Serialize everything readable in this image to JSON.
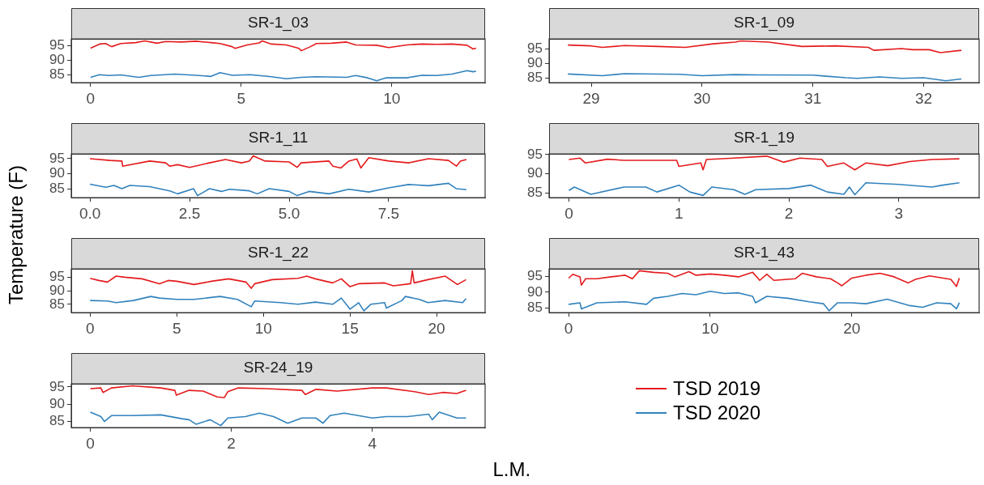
{
  "chart_data": [
    {
      "type": "line",
      "title": "SR-1_03",
      "ylabel": "Temperature (F)",
      "xlim": [
        -0.64,
        13.1
      ],
      "xticks": [
        0,
        5,
        10
      ],
      "ylim": [
        82.2,
        97.4
      ],
      "yticks": [
        85,
        90,
        95
      ],
      "grid": false,
      "series": [
        {
          "color": "#e41a1c",
          "x": [
            0,
            0.3,
            0.5,
            0.7,
            1.0,
            1.5,
            1.8,
            2.2,
            2.5,
            3.0,
            3.5,
            4.0,
            4.3,
            4.7,
            4.8,
            5.2,
            5.6,
            5.7,
            6.0,
            6.5,
            6.9,
            7.0,
            7.3,
            7.5,
            8.0,
            8.5,
            8.8,
            9.5,
            9.9,
            10.5,
            11.0,
            11.5,
            12.0,
            12.5,
            12.7,
            12.8
          ],
          "values": [
            94.2,
            95.6,
            95.8,
            94.7,
            95.8,
            96.1,
            96.7,
            95.9,
            96.5,
            96.3,
            96.6,
            96.1,
            95.8,
            94.7,
            94.1,
            95.3,
            96.0,
            96.7,
            95.6,
            95.3,
            94.2,
            93.3,
            94.7,
            95.8,
            95.9,
            96.3,
            95.3,
            95.2,
            94.4,
            95.3,
            95.6,
            95.5,
            95.6,
            95.2,
            93.9,
            94.2
          ]
        },
        {
          "color": "#3182bd",
          "x": [
            0,
            0.3,
            0.6,
            1.0,
            1.6,
            2.0,
            2.8,
            3.5,
            4.0,
            4.3,
            4.7,
            5.3,
            6.0,
            6.5,
            7.0,
            7.5,
            8.5,
            8.8,
            9.2,
            9.5,
            9.8,
            10.5,
            11.0,
            11.5,
            12.0,
            12.5,
            12.7,
            12.8
          ],
          "values": [
            84.1,
            85.0,
            84.7,
            84.9,
            84.1,
            84.7,
            85.2,
            84.8,
            84.4,
            85.7,
            84.8,
            85.0,
            84.3,
            83.6,
            84.1,
            84.3,
            84.1,
            84.7,
            83.9,
            82.9,
            83.9,
            83.9,
            84.8,
            84.7,
            85.2,
            86.4,
            86.0,
            86.2
          ]
        }
      ]
    },
    {
      "type": "line",
      "title": "SR-1_09",
      "xlim": [
        28.62,
        32.5
      ],
      "xticks": [
        29,
        30,
        31,
        32
      ],
      "ylim": [
        83.5,
        98.5
      ],
      "yticks": [
        85,
        90,
        95
      ],
      "grid": false,
      "series": [
        {
          "color": "#e41a1c",
          "x": [
            28.79,
            29.0,
            29.1,
            29.3,
            29.6,
            29.85,
            30.1,
            30.3,
            30.35,
            30.6,
            30.9,
            31.2,
            31.5,
            31.55,
            31.8,
            31.9,
            32.05,
            32.15,
            32.34
          ],
          "values": [
            96.4,
            96.1,
            95.6,
            96.2,
            95.9,
            95.6,
            96.8,
            97.4,
            97.8,
            97.4,
            95.9,
            96.1,
            95.6,
            94.6,
            95.2,
            94.8,
            94.8,
            93.8,
            94.6
          ]
        },
        {
          "color": "#3182bd",
          "x": [
            28.79,
            29.1,
            29.3,
            29.8,
            30.0,
            30.3,
            30.5,
            31.0,
            31.1,
            31.3,
            31.4,
            31.6,
            31.8,
            32.0,
            32.2,
            32.34
          ],
          "values": [
            86.5,
            85.9,
            86.6,
            86.4,
            85.9,
            86.3,
            86.2,
            86.1,
            85.8,
            85.2,
            85.0,
            85.5,
            85.0,
            85.2,
            84.2,
            84.8
          ]
        }
      ]
    },
    {
      "type": "line",
      "title": "SR-1_11",
      "xlim": [
        -0.47,
        9.92
      ],
      "xticks": [
        {
          "value": 0,
          "label": "0.0"
        },
        {
          "value": 2.5,
          "label": "2.5"
        },
        {
          "value": 5,
          "label": "5.0"
        },
        {
          "value": 7.5,
          "label": "7.5"
        }
      ],
      "ylim": [
        82.0,
        96.6
      ],
      "yticks": [
        85,
        90,
        95
      ],
      "grid": false,
      "series": [
        {
          "color": "#e41a1c",
          "x": [
            0,
            0.5,
            0.8,
            0.82,
            1.5,
            1.9,
            2.0,
            2.2,
            2.5,
            3.0,
            3.4,
            3.8,
            4.0,
            4.1,
            4.2,
            4.4,
            5.0,
            5.2,
            5.3,
            6.0,
            6.1,
            6.3,
            6.5,
            6.7,
            6.8,
            7.0,
            7.5,
            8.0,
            8.5,
            9.0,
            9.2,
            9.3,
            9.45
          ],
          "values": [
            95.0,
            94.4,
            94.2,
            92.5,
            94.2,
            93.6,
            92.5,
            93.0,
            92.1,
            93.6,
            94.7,
            93.6,
            94.2,
            95.9,
            95.3,
            94.2,
            93.9,
            92.1,
            93.6,
            94.2,
            92.5,
            91.9,
            94.2,
            94.9,
            91.9,
            95.3,
            94.2,
            93.6,
            95.0,
            94.4,
            92.5,
            94.2,
            94.7
          ]
        },
        {
          "color": "#3182bd",
          "x": [
            0,
            0.4,
            0.6,
            0.8,
            1.0,
            1.5,
            2.0,
            2.2,
            2.6,
            2.7,
            3.0,
            3.3,
            3.5,
            4.0,
            4.2,
            4.5,
            5.0,
            5.2,
            5.5,
            6.0,
            6.5,
            7.0,
            7.5,
            8.0,
            8.5,
            9.0,
            9.2,
            9.45
          ],
          "values": [
            86.5,
            85.5,
            86.1,
            85.0,
            86.1,
            85.7,
            84.3,
            83.3,
            85.0,
            82.7,
            85.0,
            84.1,
            84.8,
            84.3,
            83.3,
            85.0,
            84.1,
            82.7,
            84.1,
            83.3,
            84.8,
            83.9,
            85.3,
            86.4,
            86.0,
            86.8,
            85.0,
            84.7
          ]
        }
      ]
    },
    {
      "type": "line",
      "title": "SR-1_19",
      "xlim": [
        -0.18,
        3.73
      ],
      "xticks": [
        0,
        1,
        2,
        3
      ],
      "ylim": [
        83.7,
        95.2
      ],
      "yticks": [
        85,
        90,
        95
      ],
      "grid": false,
      "series": [
        {
          "color": "#e41a1c",
          "x": [
            0,
            0.1,
            0.15,
            0.35,
            0.5,
            0.98,
            1.0,
            1.2,
            1.22,
            1.25,
            1.5,
            1.8,
            1.95,
            2.1,
            2.3,
            2.35,
            2.5,
            2.6,
            2.7,
            2.9,
            3.1,
            3.3,
            3.55
          ],
          "values": [
            93.7,
            94.1,
            92.8,
            93.8,
            93.5,
            93.5,
            91.9,
            92.8,
            91.0,
            93.7,
            94.1,
            94.6,
            93.0,
            94.1,
            93.7,
            91.9,
            92.8,
            91.0,
            92.8,
            92.1,
            93.2,
            93.7,
            93.9
          ]
        },
        {
          "color": "#3182bd",
          "x": [
            0,
            0.05,
            0.2,
            0.5,
            0.7,
            0.8,
            1.0,
            1.1,
            1.22,
            1.3,
            1.5,
            1.6,
            1.7,
            2.0,
            2.2,
            2.35,
            2.5,
            2.55,
            2.6,
            2.7,
            3.0,
            3.3,
            3.4,
            3.55
          ],
          "values": [
            85.6,
            86.5,
            84.6,
            86.5,
            86.5,
            85.2,
            87.0,
            85.2,
            84.3,
            86.5,
            85.8,
            84.6,
            85.8,
            86.1,
            87.0,
            85.2,
            84.6,
            86.5,
            84.5,
            87.6,
            87.2,
            86.5,
            87.0,
            87.6
          ]
        }
      ]
    },
    {
      "type": "line",
      "title": "SR-1_22",
      "xlim": [
        -1.09,
        22.8
      ],
      "xticks": [
        0,
        5,
        10,
        15,
        20
      ],
      "ylim": [
        81.9,
        98.1
      ],
      "yticks": [
        85,
        90,
        95
      ],
      "grid": false,
      "series": [
        {
          "color": "#e41a1c",
          "x": [
            0,
            0.5,
            1.0,
            1.5,
            2.0,
            3.0,
            4.0,
            4.5,
            5.0,
            6.0,
            7.0,
            8.0,
            9.0,
            9.3,
            9.5,
            10.5,
            12.0,
            12.5,
            13.0,
            14.0,
            14.5,
            15.0,
            15.5,
            17.0,
            17.5,
            18.5,
            18.6,
            18.7,
            19.5,
            20.5,
            21.2,
            21.7
          ],
          "values": [
            94.6,
            93.8,
            93.2,
            95.4,
            95.0,
            94.4,
            92.6,
            93.8,
            93.5,
            92.3,
            93.5,
            94.4,
            93.2,
            90.9,
            92.6,
            94.1,
            94.6,
            95.4,
            94.4,
            92.9,
            94.4,
            91.5,
            92.6,
            92.9,
            91.8,
            92.6,
            97.4,
            92.9,
            94.1,
            95.4,
            92.3,
            94.1
          ]
        },
        {
          "color": "#3182bd",
          "x": [
            0,
            1.0,
            1.5,
            2.5,
            3.5,
            4.0,
            5.0,
            6.0,
            7.5,
            8.5,
            9.3,
            9.5,
            11.0,
            12.0,
            13.0,
            14.0,
            14.5,
            15.0,
            15.5,
            15.8,
            16.2,
            17.0,
            17.1,
            18.0,
            18.2,
            19.0,
            19.5,
            20.5,
            21.5,
            21.7
          ],
          "values": [
            86.4,
            86.2,
            85.6,
            86.4,
            87.9,
            87.3,
            86.8,
            86.8,
            87.9,
            86.8,
            84.1,
            86.2,
            85.6,
            85.0,
            85.8,
            85.0,
            87.3,
            83.2,
            85.6,
            82.6,
            85.0,
            85.6,
            83.6,
            86.4,
            87.9,
            86.8,
            85.6,
            86.4,
            85.6,
            87.1
          ]
        }
      ]
    },
    {
      "type": "line",
      "title": "SR-1_43",
      "xlim": [
        -1.38,
        29.0
      ],
      "xticks": [
        0,
        10,
        20
      ],
      "ylim": [
        83.6,
        97.3
      ],
      "yticks": [
        85,
        90,
        95
      ],
      "grid": false,
      "series": [
        {
          "color": "#e41a1c",
          "x": [
            0,
            0.3,
            0.8,
            0.9,
            1.2,
            2.0,
            3.0,
            4.0,
            4.5,
            5.0,
            6.0,
            7.0,
            7.5,
            8.0,
            8.5,
            9.0,
            10.0,
            11.0,
            12.0,
            13.0,
            13.5,
            14.0,
            14.5,
            16.0,
            16.5,
            17.5,
            18.5,
            19.0,
            19.3,
            20.0,
            21.0,
            22.0,
            23.0,
            24.0,
            24.5,
            25.5,
            27.0,
            27.4,
            27.6
          ],
          "values": [
            94.4,
            95.6,
            94.8,
            92.2,
            94.2,
            94.2,
            94.8,
            95.3,
            94.2,
            96.7,
            96.2,
            95.9,
            94.8,
            95.6,
            96.4,
            95.3,
            95.7,
            95.3,
            94.8,
            96.2,
            93.7,
            95.6,
            93.7,
            94.2,
            95.9,
            94.8,
            94.2,
            92.9,
            92.0,
            94.4,
            95.3,
            95.9,
            94.8,
            92.9,
            94.0,
            95.1,
            94.0,
            91.8,
            94.4
          ]
        },
        {
          "color": "#3182bd",
          "x": [
            0,
            0.8,
            0.9,
            2.0,
            4.0,
            5.5,
            6.0,
            7.0,
            8.0,
            9.0,
            10.0,
            11.0,
            12.0,
            13.0,
            13.2,
            14.0,
            15.5,
            17.0,
            18.0,
            18.4,
            19.0,
            20.0,
            21.0,
            22.5,
            24.0,
            25.0,
            26.0,
            27.0,
            27.4,
            27.6
          ],
          "values": [
            86.2,
            86.7,
            84.8,
            86.7,
            87.0,
            86.2,
            88.1,
            88.7,
            89.6,
            89.2,
            90.3,
            89.6,
            89.8,
            88.7,
            86.7,
            88.7,
            88.1,
            87.0,
            86.4,
            84.2,
            86.7,
            86.7,
            86.4,
            87.8,
            85.9,
            85.3,
            86.7,
            86.4,
            84.8,
            86.7
          ]
        }
      ]
    },
    {
      "type": "line",
      "title": "SR-24_19",
      "xlabel": "L.M.",
      "legend": "right",
      "xlim": [
        -0.27,
        5.6
      ],
      "xticks": [
        0,
        2,
        4
      ],
      "ylim": [
        83.2,
        95.9
      ],
      "yticks": [
        85,
        90,
        95
      ],
      "grid": false,
      "series": [
        {
          "name": "TSD 2019",
          "color": "#e41a1c",
          "x": [
            0,
            0.15,
            0.18,
            0.3,
            0.6,
            1.0,
            1.2,
            1.22,
            1.4,
            1.6,
            1.8,
            1.9,
            1.95,
            2.1,
            2.5,
            3.0,
            3.05,
            3.2,
            3.5,
            4.0,
            4.2,
            4.6,
            4.8,
            5.0,
            5.2,
            5.33
          ],
          "values": [
            94.5,
            94.7,
            93.4,
            94.7,
            95.3,
            94.7,
            94.0,
            92.6,
            94.0,
            93.8,
            92.1,
            91.9,
            93.6,
            94.7,
            94.5,
            94.0,
            92.8,
            94.3,
            93.8,
            94.7,
            94.7,
            93.6,
            92.8,
            93.4,
            93.1,
            94.0
          ]
        },
        {
          "name": "TSD 2020",
          "color": "#3182bd",
          "x": [
            0,
            0.15,
            0.2,
            0.3,
            0.6,
            1.0,
            1.3,
            1.4,
            1.5,
            1.7,
            1.85,
            1.95,
            2.2,
            2.4,
            2.6,
            2.8,
            3.0,
            3.2,
            3.3,
            3.4,
            3.6,
            4.0,
            4.2,
            4.5,
            4.8,
            4.85,
            4.95,
            5.2,
            5.33
          ],
          "values": [
            87.7,
            86.4,
            85.0,
            86.7,
            86.7,
            86.9,
            85.8,
            85.5,
            84.2,
            85.5,
            83.8,
            86.0,
            86.4,
            87.4,
            86.4,
            84.5,
            86.0,
            86.0,
            84.5,
            86.7,
            87.4,
            86.0,
            86.4,
            86.4,
            87.1,
            85.5,
            87.7,
            86.0,
            86.0
          ]
        }
      ]
    }
  ]
}
